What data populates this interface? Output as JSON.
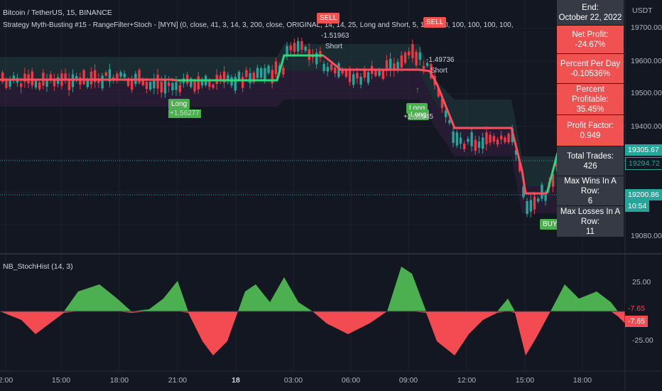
{
  "header": {
    "symbol": "Bitcoin / TetherUS, 15, BINANCE",
    "strategy": "Strategy Myth-Busting #15 - RangeFilter+Stoch - [MYN] (0, close, 41, 3, 14, 3, 200, close, ORIGINAL, 14, 14, 25, Long and Short, 5, 100, 100, 100, 100, 100, 100, 7, 1, CRYPTSELL_99FTX_Strategy-Name-Here)",
    "currency": "USDT"
  },
  "price_axis": [
    "19700.00",
    "19600.00",
    "19500.00",
    "19400.00",
    "19080.00"
  ],
  "price_tags": [
    {
      "label": "19305.67",
      "color": "#26a69a"
    },
    {
      "label": "19294.72",
      "color": "#089981"
    },
    {
      "label": "19200.86",
      "color": "#26a69a"
    },
    {
      "label": "10:54",
      "color": "#26a69a"
    }
  ],
  "signals": {
    "sell_1": "SELL",
    "sell_2": "SELL",
    "buy_1": "BUY",
    "long_1": "Long",
    "long_2": "Long",
    "long_3": "Long",
    "short_1": "Short",
    "short_2": "Short",
    "ann_long_1": "+1.56277",
    "ann_long_2": "+1.38845",
    "ann_short_1": "-1.51963",
    "ann_short_2": "-1.49736",
    "buy_arrow": "↑",
    "buy_arrow_2": "↑"
  },
  "stats_panel": [
    {
      "label": "End:",
      "value": "October 22, 2022",
      "style": "gray"
    },
    {
      "label": "Net Profit:",
      "value": "-24.67%",
      "style": "red"
    },
    {
      "label": "Percent Per Day",
      "value": "-0.10536%",
      "style": "red"
    },
    {
      "label": "Percent Profitable:",
      "value": "35.45%",
      "style": "red"
    },
    {
      "label": "Profit Factor:",
      "value": "0.949",
      "style": "red"
    },
    {
      "label": "Total Trades:",
      "value": "426",
      "style": "gray"
    },
    {
      "label": "Max Wins In A Row:",
      "value": "6",
      "style": "gray"
    },
    {
      "label": "Max Losses In A Row:",
      "value": "11",
      "style": "gray"
    }
  ],
  "indicator": {
    "title": "NB_StochHist (14, 3)",
    "axis": [
      "25.00",
      "-25.00"
    ],
    "tags": [
      "-7.65",
      "-7.65"
    ]
  },
  "time_axis": [
    "2:00",
    "15:00",
    "18:00",
    "21:00",
    "18",
    "03:00",
    "06:00",
    "09:00",
    "12:00",
    "15:00",
    "18:00"
  ],
  "colors": {
    "bg": "#131722",
    "up": "#26a69a",
    "down": "#f23645",
    "filter_up": "#2bd97a",
    "filter_down": "#ff4d5e"
  }
}
